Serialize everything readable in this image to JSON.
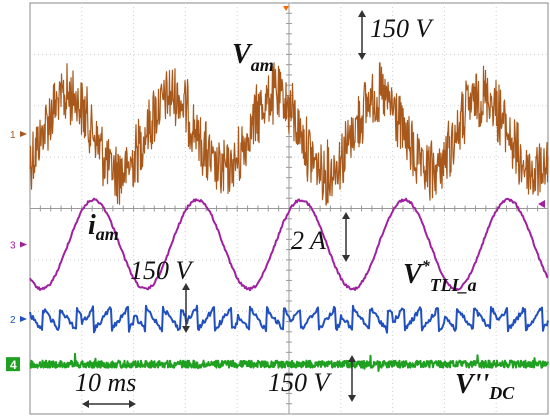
{
  "chart_data": {
    "type": "line",
    "title": "",
    "x_grid_divisions": 10,
    "y_grid_divisions": 8,
    "grid": true,
    "time_scale": {
      "label": "10 ms",
      "per_division_ms": 10
    },
    "voltage_scales": [
      {
        "id": "top",
        "label": "150 V"
      },
      {
        "id": "mid",
        "label": "150 V"
      },
      {
        "id": "bottom",
        "label": "150 V"
      }
    ],
    "current_scale": {
      "label": "2 A"
    },
    "channel_markers": [
      "1",
      "3",
      "2",
      "4"
    ],
    "series": [
      {
        "channel": "1",
        "label_main": "V",
        "label_sub": "am",
        "label_sup": "",
        "color": "#a8581a",
        "waveform": "noisy-sine",
        "period_ms": 20,
        "offset_div": 2.55,
        "amplitude_div": 0.75,
        "noise_div": 0.65
      },
      {
        "channel": "3",
        "label_main": "i",
        "label_sub": "am",
        "label_sup": "",
        "color": "#a020a0",
        "waveform": "sine",
        "period_ms": 20,
        "offset_div": 4.7,
        "amplitude_div": 0.87,
        "noise_div": 0.05
      },
      {
        "channel": "2",
        "label_main": "V",
        "label_sub": "TLI_a",
        "label_sup": "*",
        "color": "#2050c0",
        "waveform": "sawtooth",
        "period_ms": 3.33,
        "offset_div": 6.15,
        "amplitude_div": 0.22,
        "noise_div": 0.05
      },
      {
        "channel": "4",
        "label_main": "V''",
        "label_sub": "DC",
        "label_sup": "",
        "color": "#20a020",
        "waveform": "noisy-dc",
        "period_ms": 0,
        "offset_div": 7.03,
        "amplitude_div": 0.0,
        "noise_div": 0.07
      }
    ]
  }
}
